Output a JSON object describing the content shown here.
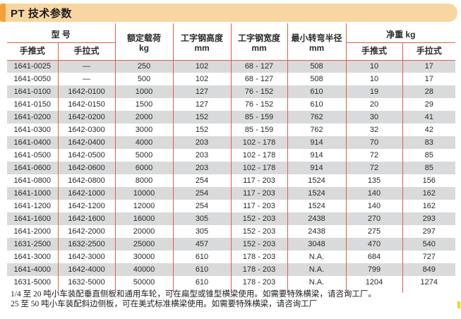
{
  "title": "PT 技术参数",
  "table": {
    "headers": {
      "model_group": "型 号",
      "model_push": "手推式",
      "model_pull": "手拉式",
      "rated_load": "额定载荷",
      "rated_load_unit": "kg",
      "beam_height": "工字钢高度",
      "beam_height_unit": "mm",
      "beam_width": "工字钢宽度",
      "beam_width_unit": "mm",
      "turning_radius": "最小转弯半径",
      "turning_radius_unit": "mm",
      "net_weight_group": "净重 kg",
      "net_weight_push": "手推式",
      "net_weight_pull": "手拉式"
    },
    "rows": [
      [
        "1641-0025",
        "—",
        "250",
        "102",
        "68 - 127",
        "508",
        "10",
        "17"
      ],
      [
        "1641-0050",
        "—",
        "500",
        "102",
        "68 - 127",
        "508",
        "10",
        "17"
      ],
      [
        "1641-0100",
        "1642-0100",
        "1000",
        "127",
        "76 - 152",
        "610",
        "19",
        "28"
      ],
      [
        "1641-0150",
        "1642-0150",
        "1500",
        "127",
        "76 - 152",
        "610",
        "20",
        "29"
      ],
      [
        "1641-0200",
        "1642-0200",
        "2000",
        "152",
        "85 - 159",
        "762",
        "30",
        "41"
      ],
      [
        "1641-0300",
        "1642-0300",
        "3000",
        "152",
        "85 - 159",
        "762",
        "32",
        "42"
      ],
      [
        "1641-0400",
        "1642-0400",
        "4000",
        "203",
        "102 - 178",
        "914",
        "70",
        "83"
      ],
      [
        "1641-0500",
        "1642-0500",
        "5000",
        "203",
        "102 - 178",
        "914",
        "72",
        "85"
      ],
      [
        "1641-0600",
        "1642-0600",
        "6000",
        "203",
        "102 - 178",
        "914",
        "72",
        "85"
      ],
      [
        "1641-0800",
        "1642-0800",
        "8000",
        "254",
        "117 - 203",
        "1524",
        "135",
        "156"
      ],
      [
        "1641-1000",
        "1642-1000",
        "10000",
        "254",
        "117 - 203",
        "1524",
        "140",
        "162"
      ],
      [
        "1641-1200",
        "1642-1200",
        "12000",
        "254",
        "117 - 203",
        "1524",
        "140",
        "162"
      ],
      [
        "1641-1600",
        "1642-1600",
        "16000",
        "305",
        "152 - 203",
        "2438",
        "270",
        "293"
      ],
      [
        "1641-2000",
        "1642-2000",
        "20000",
        "305",
        "152 - 203",
        "2438",
        "275",
        "297"
      ],
      [
        "1631-2500",
        "1632-2500",
        "25000",
        "457",
        "152 - 203",
        "3048",
        "470",
        "540"
      ],
      [
        "1641-3000",
        "1642-3000",
        "30000",
        "610",
        "178 - 203",
        "N.A.",
        "684",
        "727"
      ],
      [
        "1641-4000",
        "1642-4000",
        "40000",
        "610",
        "178 - 203",
        "N.A.",
        "799",
        "849"
      ],
      [
        "1631-5000",
        "1632-5000",
        "50000",
        "610",
        "178 - 203",
        "N.A.",
        "1204",
        "1274"
      ]
    ]
  },
  "notes": [
    "1/4 至 20 吨小车装配垂直侧板和通用车轮，可在扁型或锥型横梁使用。如需要特殊横梁，请咨询工厂。",
    "25 至 50 吨小车装配斜边侧板，可在美式标准横梁使用。如需要特殊横梁，请咨询工厂"
  ],
  "colors": {
    "title_band_bg": "#f8d6a2",
    "title_accent_orange": "#f0a23c",
    "table_line_red": "#de5e4c",
    "row_alt_gray": "#d9dadb",
    "page_marker_yellow": "#ffd408"
  }
}
